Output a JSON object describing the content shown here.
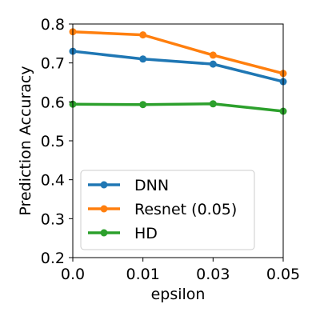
{
  "chart_data": {
    "type": "line",
    "x": [
      "0.0",
      "0.01",
      "0.03",
      "0.05"
    ],
    "xlabel": "epsilon",
    "ylabel": "Prediction Accuracy",
    "ylim": [
      0.2,
      0.8
    ],
    "yticks": [
      "0.2",
      "0.3",
      "0.4",
      "0.5",
      "0.6",
      "0.7",
      "0.8"
    ],
    "grid": false,
    "legend_position": "lower-left",
    "series": [
      {
        "name": "DNN",
        "color": "#1f77b4",
        "values": [
          0.73,
          0.71,
          0.697,
          0.652
        ]
      },
      {
        "name": "Resnet (0.05)",
        "color": "#ff7f0e",
        "values": [
          0.78,
          0.772,
          0.72,
          0.673
        ]
      },
      {
        "name": "HD",
        "color": "#2ca02c",
        "values": [
          0.594,
          0.593,
          0.595,
          0.576
        ]
      }
    ]
  }
}
